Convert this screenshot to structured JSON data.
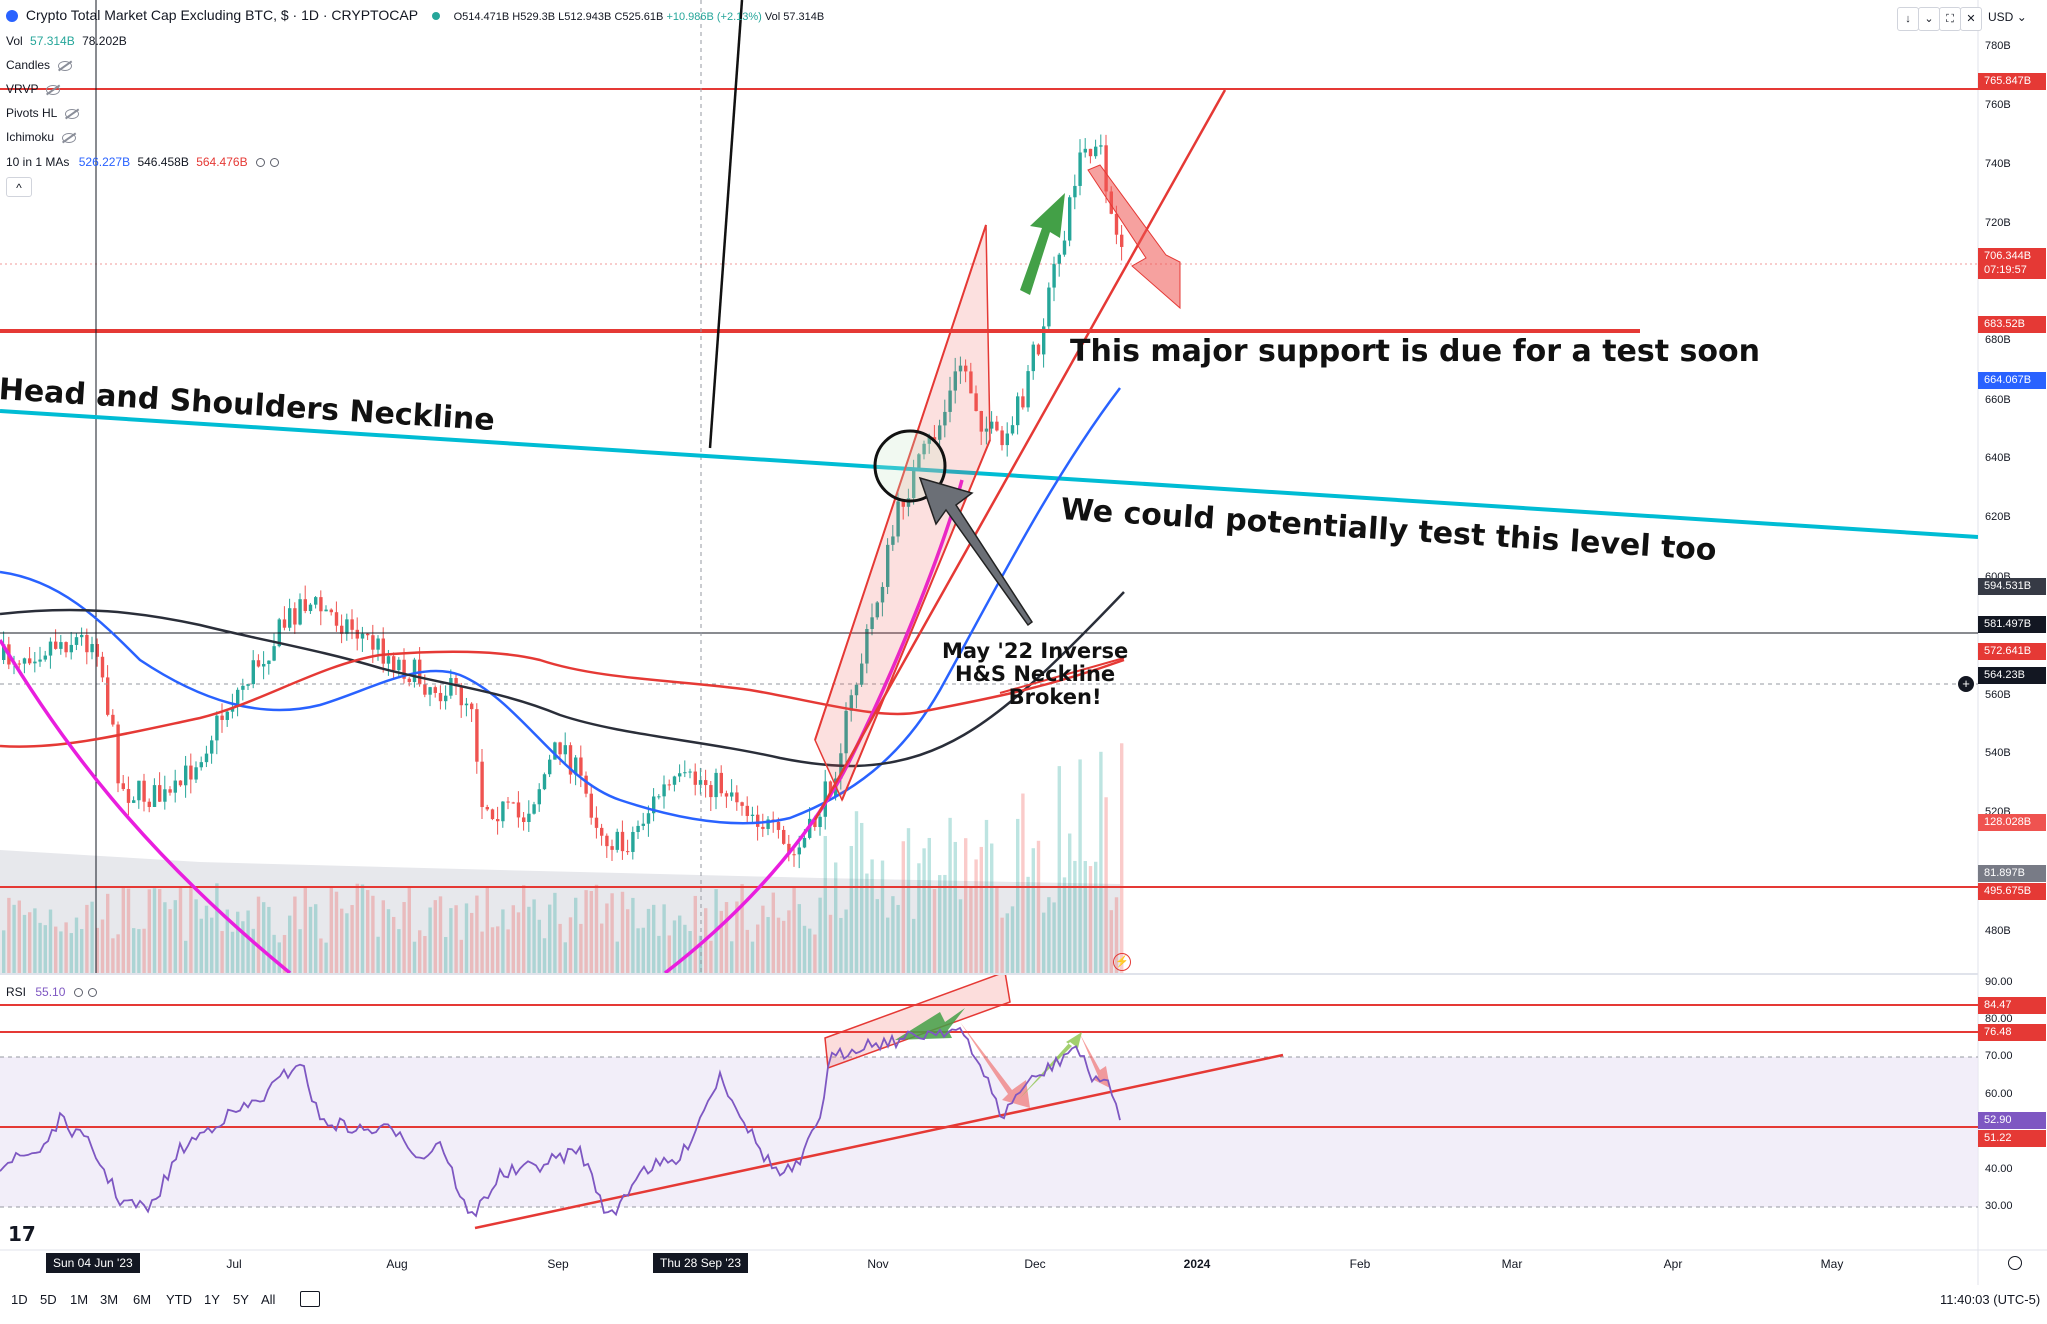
{
  "header": {
    "title": "Crypto Total Market Cap Excluding BTC, $ · 1D · CRYPTOCAP",
    "open": "O514.471B",
    "high": "H529.3B",
    "low": "L512.943B",
    "close": "C525.61B",
    "change": "+10.986B (+2.13%)",
    "volume": "Vol 57.314B",
    "currency": "USD"
  },
  "indicators": {
    "vol_label": "Vol",
    "vol_v1": "57.314B",
    "vol_v2": "78.202B",
    "candles": "Candles",
    "vrvp": "VRVP",
    "pivots": "Pivots HL",
    "ichimoku": "Ichimoku",
    "mas_label": "10 in 1 MAs",
    "ma1": "526.227B",
    "ma2": "546.458B",
    "ma3": "564.476B",
    "collapse": "^"
  },
  "price_axis": [
    "780B",
    "760B",
    "740B",
    "720B",
    "680B",
    "660B",
    "640B",
    "620B",
    "600B",
    "560B",
    "540B",
    "520B",
    "500B",
    "480B"
  ],
  "price_tags": [
    {
      "text": "765.847B",
      "color": "#e53935"
    },
    {
      "text": "706.344B",
      "color": "#e53935"
    },
    {
      "text": "07:19:57",
      "color": "#e53935"
    },
    {
      "text": "683.52B",
      "color": "#e53935"
    },
    {
      "text": "664.067B",
      "color": "#2962ff"
    },
    {
      "text": "594.531B",
      "color": "#363a45"
    },
    {
      "text": "581.497B",
      "color": "#131722"
    },
    {
      "text": "572.641B",
      "color": "#e53935"
    },
    {
      "text": "564.23B",
      "color": "#131722"
    },
    {
      "text": "128.028B",
      "color": "#ef5350"
    },
    {
      "text": "81.897B",
      "color": "#787b86"
    },
    {
      "text": "495.675B",
      "color": "#e53935"
    }
  ],
  "rsi": {
    "label": "RSI",
    "value": "55.10",
    "axis": [
      "90.00",
      "80.00",
      "70.00",
      "60.00",
      "40.00",
      "30.00"
    ],
    "tags": [
      {
        "text": "84.47",
        "color": "#e53935"
      },
      {
        "text": "76.48",
        "color": "#e53935"
      },
      {
        "text": "52.90",
        "color": "#7e57c2"
      },
      {
        "text": "51.22",
        "color": "#e53935"
      }
    ]
  },
  "time_axis": {
    "labels": [
      "Jul",
      "Aug",
      "Sep",
      "Nov",
      "Dec",
      "2024",
      "Feb",
      "Mar",
      "Apr",
      "May"
    ],
    "crosshair_1": "Sun 04 Jun '23",
    "crosshair_2": "Thu 28 Sep '23"
  },
  "annotations": {
    "neckline": "Head and Shoulders Neckline",
    "support": "This major support is due for a test soon",
    "level": "We could potentially test this level too",
    "inverse_1": "May '22 Inverse",
    "inverse_2": "H&S Neckline",
    "inverse_3": "Broken!"
  },
  "bottom_bar": {
    "timeframes": [
      "1D",
      "5D",
      "1M",
      "3M",
      "6M",
      "YTD",
      "1Y",
      "5Y",
      "All"
    ],
    "clock": "11:40:03 (UTC-5)"
  },
  "colors": {
    "support_red": "#e53935",
    "neckline_cyan": "#00bcd4",
    "ma_blue": "#2962ff",
    "ma_black": "#2a2e39",
    "ma_red": "#e53935",
    "arc_magenta": "#e91ede",
    "rsi_purple": "#7e57c2",
    "up_candle": "#26a69a",
    "down_candle": "#ef5350"
  }
}
